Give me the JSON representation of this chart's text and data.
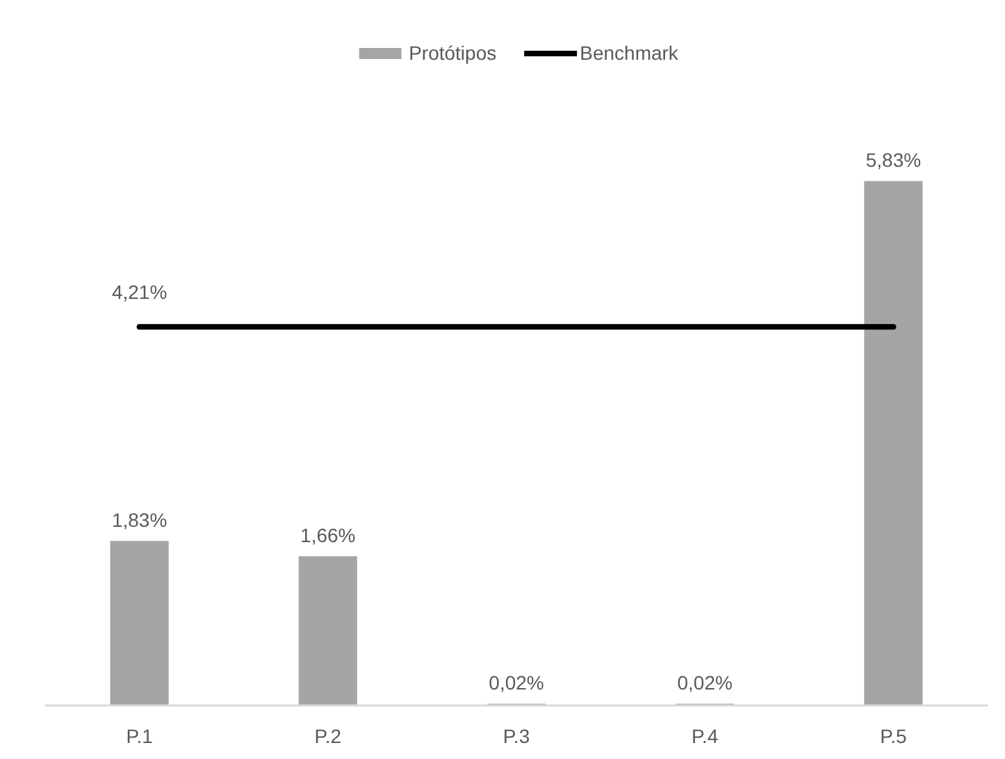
{
  "chart_data": {
    "type": "bar",
    "categories": [
      "P.1",
      "P.2",
      "P.3",
      "P.4",
      "P.5"
    ],
    "series": [
      {
        "name": "Protótipos",
        "color": "#a5a5a5",
        "values": [
          1.83,
          1.66,
          0.02,
          0.02,
          5.83
        ],
        "value_labels": [
          "1,83%",
          "1,66%",
          "0,02%",
          "0,02%",
          "5,83%"
        ]
      },
      {
        "name": "Benchmark",
        "type": "line",
        "color": "#000000",
        "values": [
          4.21,
          4.21,
          4.21,
          4.21,
          4.21
        ],
        "value_labels": [
          "4,21%",
          null,
          null,
          null,
          null
        ]
      }
    ],
    "tick_labels": "x",
    "grid": false,
    "legend": "top",
    "line_style": "solid"
  }
}
